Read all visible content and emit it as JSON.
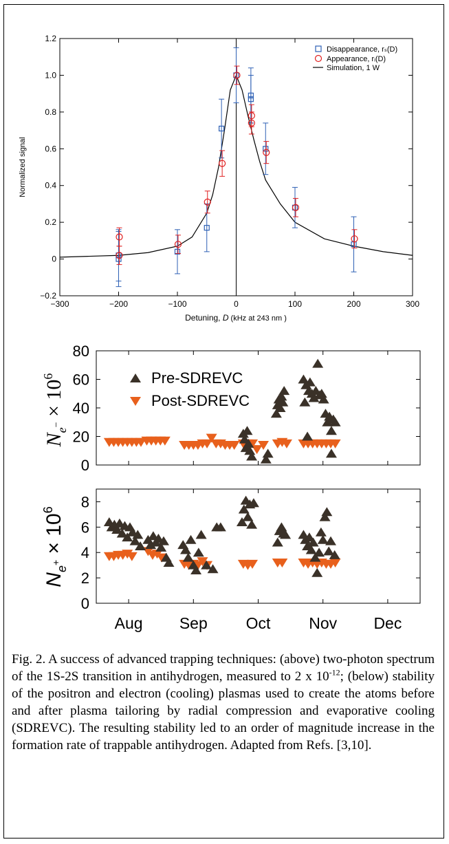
{
  "chart_data": [
    {
      "type": "scatter",
      "xlabel_prefix": "Detuning, ",
      "xlabel_var": "D",
      "xlabel_suffix": " (kHz at 243 nm )",
      "ylabel": "Normalized signal",
      "xlim": [
        -300,
        300
      ],
      "ylim": [
        -0.2,
        1.2
      ],
      "xticks": [
        "−300",
        "−200",
        "−100",
        "0",
        "100",
        "200",
        "300"
      ],
      "xtick_values": [
        -300,
        -200,
        -100,
        0,
        100,
        200,
        300
      ],
      "yticks": [
        "−0.2",
        "0",
        "0.2",
        "0.4",
        "0.6",
        "0.8",
        "1.0",
        "1.2"
      ],
      "ytick_values": [
        -0.2,
        0,
        0.2,
        0.4,
        0.6,
        0.8,
        1.0,
        1.2
      ],
      "legend_placement": "top-right",
      "legend": {
        "disappearance": "Disappearance, rₛ(D)",
        "appearance": "Appearance, rᵢ(D)",
        "simulation": "Simulation, 1 W"
      },
      "colors": {
        "disappearance": "#2c5fb4",
        "appearance": "#e02020",
        "simulation": "#000000"
      },
      "series": [
        {
          "name": "Disappearance, rₛ(D)",
          "marker": "square",
          "points": [
            {
              "x": -200,
              "y": 0.0,
              "err": 0.15
            },
            {
              "x": -200,
              "y": 0.02,
              "err": 0.14
            },
            {
              "x": -100,
              "y": 0.04,
              "err": 0.12
            },
            {
              "x": -50,
              "y": 0.17,
              "err": 0.13
            },
            {
              "x": -25,
              "y": 0.71,
              "err": 0.16
            },
            {
              "x": 0,
              "y": 1.0,
              "err": 0.15
            },
            {
              "x": 25,
              "y": 0.89,
              "err": 0.15
            },
            {
              "x": 25,
              "y": 0.87,
              "err": 0.13
            },
            {
              "x": 50,
              "y": 0.6,
              "err": 0.14
            },
            {
              "x": 100,
              "y": 0.28,
              "err": 0.11
            },
            {
              "x": 200,
              "y": 0.08,
              "err": 0.15
            }
          ]
        },
        {
          "name": "Appearance, rᵢ(D)",
          "marker": "circle",
          "points": [
            {
              "x": -200,
              "y": 0.12,
              "err": 0.05
            },
            {
              "x": -200,
              "y": 0.02,
              "err": 0.05
            },
            {
              "x": -100,
              "y": 0.08,
              "err": 0.05
            },
            {
              "x": -50,
              "y": 0.31,
              "err": 0.06
            },
            {
              "x": -25,
              "y": 0.52,
              "err": 0.07
            },
            {
              "x": 0,
              "y": 1.0,
              "err": 0.05
            },
            {
              "x": 25,
              "y": 0.78,
              "err": 0.06
            },
            {
              "x": 25,
              "y": 0.74,
              "err": 0.06
            },
            {
              "x": 50,
              "y": 0.58,
              "err": 0.06
            },
            {
              "x": 100,
              "y": 0.28,
              "err": 0.05
            },
            {
              "x": 200,
              "y": 0.11,
              "err": 0.05
            }
          ]
        },
        {
          "name": "Simulation, 1 W",
          "marker": "line",
          "x": [
            -300,
            -250,
            -200,
            -150,
            -100,
            -75,
            -50,
            -40,
            -30,
            -20,
            -10,
            0,
            10,
            20,
            30,
            40,
            50,
            75,
            100,
            150,
            200,
            250,
            300
          ],
          "y": [
            0.01,
            0.015,
            0.02,
            0.035,
            0.07,
            0.12,
            0.25,
            0.35,
            0.5,
            0.7,
            0.92,
            1.0,
            0.92,
            0.78,
            0.65,
            0.53,
            0.43,
            0.3,
            0.2,
            0.11,
            0.07,
            0.04,
            0.02
          ]
        }
      ]
    },
    {
      "type": "scatter",
      "ylabel": "N_{e−} × 10^6",
      "ylim": [
        0,
        80
      ],
      "yticks": [
        "0",
        "20",
        "40",
        "60",
        "80"
      ],
      "ytick_values": [
        0,
        20,
        40,
        60,
        80
      ],
      "xlim": [
        0,
        5
      ],
      "xticks": [],
      "legend_placement": "top-left",
      "legend": {
        "pre": "Pre-SDREVC",
        "post": "Post-SDREVC"
      },
      "colors": {
        "pre": "#3a3128",
        "post": "#e8601c"
      },
      "series": [
        {
          "name": "Pre-SDREVC",
          "marker": "triangle-up",
          "points": [
            {
              "x": 2.27,
              "y": 22
            },
            {
              "x": 2.29,
              "y": 18
            },
            {
              "x": 2.31,
              "y": 12
            },
            {
              "x": 2.33,
              "y": 24
            },
            {
              "x": 2.35,
              "y": 15
            },
            {
              "x": 2.37,
              "y": 10
            },
            {
              "x": 2.4,
              "y": 6
            },
            {
              "x": 2.62,
              "y": 4
            },
            {
              "x": 2.65,
              "y": 8
            },
            {
              "x": 2.78,
              "y": 36
            },
            {
              "x": 2.8,
              "y": 42
            },
            {
              "x": 2.82,
              "y": 46
            },
            {
              "x": 2.84,
              "y": 40
            },
            {
              "x": 2.86,
              "y": 48
            },
            {
              "x": 2.88,
              "y": 44
            },
            {
              "x": 2.9,
              "y": 52
            },
            {
              "x": 3.2,
              "y": 60
            },
            {
              "x": 3.22,
              "y": 44
            },
            {
              "x": 3.24,
              "y": 56
            },
            {
              "x": 3.26,
              "y": 20
            },
            {
              "x": 3.28,
              "y": 52
            },
            {
              "x": 3.3,
              "y": 58
            },
            {
              "x": 3.33,
              "y": 50
            },
            {
              "x": 3.36,
              "y": 47
            },
            {
              "x": 3.39,
              "y": 52
            },
            {
              "x": 3.42,
              "y": 71
            },
            {
              "x": 3.45,
              "y": 49
            },
            {
              "x": 3.48,
              "y": 50
            },
            {
              "x": 3.51,
              "y": 46
            },
            {
              "x": 3.54,
              "y": 36
            },
            {
              "x": 3.57,
              "y": 30
            },
            {
              "x": 3.6,
              "y": 34
            },
            {
              "x": 3.63,
              "y": 24
            },
            {
              "x": 3.66,
              "y": 32
            },
            {
              "x": 3.69,
              "y": 30
            },
            {
              "x": 3.63,
              "y": 8
            }
          ]
        },
        {
          "name": "Post-SDREVC",
          "marker": "triangle-down",
          "points": [
            {
              "x": 0.2,
              "y": 16
            },
            {
              "x": 0.27,
              "y": 16
            },
            {
              "x": 0.34,
              "y": 16
            },
            {
              "x": 0.41,
              "y": 16
            },
            {
              "x": 0.48,
              "y": 16
            },
            {
              "x": 0.55,
              "y": 16
            },
            {
              "x": 0.62,
              "y": 16
            },
            {
              "x": 0.69,
              "y": 16
            },
            {
              "x": 0.78,
              "y": 17
            },
            {
              "x": 0.85,
              "y": 17
            },
            {
              "x": 0.92,
              "y": 17
            },
            {
              "x": 0.99,
              "y": 17
            },
            {
              "x": 1.06,
              "y": 17
            },
            {
              "x": 1.36,
              "y": 14
            },
            {
              "x": 1.43,
              "y": 14
            },
            {
              "x": 1.5,
              "y": 14
            },
            {
              "x": 1.57,
              "y": 14
            },
            {
              "x": 1.64,
              "y": 15
            },
            {
              "x": 1.71,
              "y": 15
            },
            {
              "x": 1.78,
              "y": 19
            },
            {
              "x": 1.85,
              "y": 15
            },
            {
              "x": 1.92,
              "y": 15
            },
            {
              "x": 1.99,
              "y": 14
            },
            {
              "x": 2.06,
              "y": 14
            },
            {
              "x": 2.13,
              "y": 14
            },
            {
              "x": 2.27,
              "y": 15
            },
            {
              "x": 2.34,
              "y": 15
            },
            {
              "x": 2.41,
              "y": 15
            },
            {
              "x": 2.48,
              "y": 11
            },
            {
              "x": 2.58,
              "y": 14
            },
            {
              "x": 2.8,
              "y": 15
            },
            {
              "x": 2.87,
              "y": 16
            },
            {
              "x": 2.94,
              "y": 15
            },
            {
              "x": 3.2,
              "y": 15
            },
            {
              "x": 3.27,
              "y": 15
            },
            {
              "x": 3.34,
              "y": 15
            },
            {
              "x": 3.41,
              "y": 15
            },
            {
              "x": 3.48,
              "y": 15
            },
            {
              "x": 3.55,
              "y": 15
            },
            {
              "x": 3.62,
              "y": 15
            },
            {
              "x": 3.69,
              "y": 15
            }
          ]
        }
      ]
    },
    {
      "type": "scatter",
      "ylabel": "N_{e+} × 10^6",
      "ylim": [
        0,
        9
      ],
      "yticks": [
        "0",
        "2",
        "4",
        "6",
        "8"
      ],
      "ytick_values": [
        0,
        2,
        4,
        6,
        8
      ],
      "xlim": [
        0,
        5
      ],
      "categories": [
        "Aug",
        "Sep",
        "Oct",
        "Nov",
        "Dec"
      ],
      "category_positions": [
        0.5,
        1.5,
        2.5,
        3.5,
        4.5
      ],
      "colors": {
        "pre": "#3a3128",
        "post": "#e8601c"
      },
      "series": [
        {
          "name": "Pre-SDREVC",
          "marker": "triangle-up",
          "points": [
            {
              "x": 0.2,
              "y": 6.4
            },
            {
              "x": 0.24,
              "y": 6.0
            },
            {
              "x": 0.28,
              "y": 6.2
            },
            {
              "x": 0.32,
              "y": 5.8
            },
            {
              "x": 0.36,
              "y": 6.3
            },
            {
              "x": 0.4,
              "y": 5.5
            },
            {
              "x": 0.44,
              "y": 6.1
            },
            {
              "x": 0.48,
              "y": 5.2
            },
            {
              "x": 0.52,
              "y": 6.0
            },
            {
              "x": 0.56,
              "y": 5.6
            },
            {
              "x": 0.6,
              "y": 4.9
            },
            {
              "x": 0.64,
              "y": 5.4
            },
            {
              "x": 0.68,
              "y": 4.5
            },
            {
              "x": 0.8,
              "y": 5.0
            },
            {
              "x": 0.84,
              "y": 4.6
            },
            {
              "x": 0.88,
              "y": 5.3
            },
            {
              "x": 0.92,
              "y": 4.8
            },
            {
              "x": 0.96,
              "y": 5.1
            },
            {
              "x": 1.0,
              "y": 4.4
            },
            {
              "x": 1.04,
              "y": 4.9
            },
            {
              "x": 1.08,
              "y": 3.6
            },
            {
              "x": 1.12,
              "y": 3.2
            },
            {
              "x": 1.34,
              "y": 4.6
            },
            {
              "x": 1.38,
              "y": 4.2
            },
            {
              "x": 1.42,
              "y": 3.6
            },
            {
              "x": 1.46,
              "y": 5.0
            },
            {
              "x": 1.5,
              "y": 3.0
            },
            {
              "x": 1.54,
              "y": 2.6
            },
            {
              "x": 1.58,
              "y": 4.0
            },
            {
              "x": 1.62,
              "y": 5.4
            },
            {
              "x": 1.7,
              "y": 3.0
            },
            {
              "x": 1.8,
              "y": 2.7
            },
            {
              "x": 1.86,
              "y": 6.0
            },
            {
              "x": 1.92,
              "y": 6.0
            },
            {
              "x": 2.25,
              "y": 6.4
            },
            {
              "x": 2.28,
              "y": 7.4
            },
            {
              "x": 2.31,
              "y": 8.1
            },
            {
              "x": 2.34,
              "y": 6.8
            },
            {
              "x": 2.37,
              "y": 7.8
            },
            {
              "x": 2.4,
              "y": 6.2
            },
            {
              "x": 2.43,
              "y": 7.9
            },
            {
              "x": 2.8,
              "y": 4.8
            },
            {
              "x": 2.83,
              "y": 5.7
            },
            {
              "x": 2.86,
              "y": 6.0
            },
            {
              "x": 2.89,
              "y": 5.5
            },
            {
              "x": 2.92,
              "y": 5.4
            },
            {
              "x": 3.2,
              "y": 5.4
            },
            {
              "x": 3.23,
              "y": 5.0
            },
            {
              "x": 3.26,
              "y": 4.5
            },
            {
              "x": 3.29,
              "y": 5.2
            },
            {
              "x": 3.32,
              "y": 4.2
            },
            {
              "x": 3.35,
              "y": 4.8
            },
            {
              "x": 3.38,
              "y": 3.6
            },
            {
              "x": 3.41,
              "y": 2.4
            },
            {
              "x": 3.44,
              "y": 4.0
            },
            {
              "x": 3.47,
              "y": 5.6
            },
            {
              "x": 3.5,
              "y": 5.0
            },
            {
              "x": 3.53,
              "y": 6.8
            },
            {
              "x": 3.56,
              "y": 7.2
            },
            {
              "x": 3.59,
              "y": 4.1
            },
            {
              "x": 3.62,
              "y": 4.9
            },
            {
              "x": 3.68,
              "y": 3.8
            }
          ]
        },
        {
          "name": "Post-SDREVC",
          "marker": "triangle-down",
          "points": [
            {
              "x": 0.2,
              "y": 3.7
            },
            {
              "x": 0.27,
              "y": 3.7
            },
            {
              "x": 0.34,
              "y": 3.8
            },
            {
              "x": 0.41,
              "y": 3.8
            },
            {
              "x": 0.48,
              "y": 3.9
            },
            {
              "x": 0.55,
              "y": 3.7
            },
            {
              "x": 0.8,
              "y": 4.1
            },
            {
              "x": 0.87,
              "y": 3.8
            },
            {
              "x": 0.94,
              "y": 3.9
            },
            {
              "x": 1.01,
              "y": 3.6
            },
            {
              "x": 1.36,
              "y": 3.1
            },
            {
              "x": 1.43,
              "y": 3.0
            },
            {
              "x": 1.5,
              "y": 3.1
            },
            {
              "x": 1.57,
              "y": 3.0
            },
            {
              "x": 1.64,
              "y": 3.3
            },
            {
              "x": 1.71,
              "y": 3.0
            },
            {
              "x": 2.27,
              "y": 3.1
            },
            {
              "x": 2.34,
              "y": 3.0
            },
            {
              "x": 2.41,
              "y": 3.1
            },
            {
              "x": 2.8,
              "y": 3.2
            },
            {
              "x": 2.87,
              "y": 3.2
            },
            {
              "x": 3.2,
              "y": 3.2
            },
            {
              "x": 3.27,
              "y": 3.1
            },
            {
              "x": 3.34,
              "y": 3.2
            },
            {
              "x": 3.41,
              "y": 3.1
            },
            {
              "x": 3.48,
              "y": 3.2
            },
            {
              "x": 3.55,
              "y": 3.1
            },
            {
              "x": 3.62,
              "y": 3.1
            },
            {
              "x": 3.69,
              "y": 3.2
            }
          ]
        }
      ]
    }
  ],
  "caption": {
    "part1": "Fig. 2. A success of advanced trapping techniques: (above) two-photon spectrum of the 1S-2S transition in antihydrogen, measured to 2 x 10",
    "sup": "-12",
    "part2": "; (below) stability of the positron and electron (cooling) plasmas used to create the atoms before and after plasma tailoring by radial compression and evaporative cooling (SDREVC). The resulting stability led to an order of magnitude increase in the formation rate of trappable antihydrogen. Adapted from Refs. [3,10]."
  }
}
